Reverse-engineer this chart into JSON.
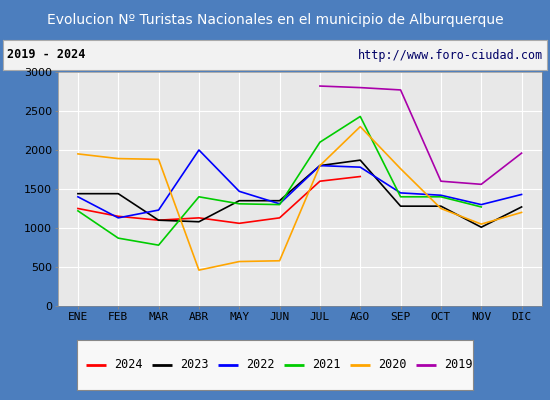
{
  "title": "Evolucion Nº Turistas Nacionales en el municipio de Alburquerque",
  "subtitle_left": "2019 - 2024",
  "subtitle_right": "http://www.foro-ciudad.com",
  "months": [
    "ENE",
    "FEB",
    "MAR",
    "ABR",
    "MAY",
    "JUN",
    "JUL",
    "AGO",
    "SEP",
    "OCT",
    "NOV",
    "DIC"
  ],
  "series": {
    "2024": [
      1250,
      1150,
      1100,
      1130,
      1060,
      1130,
      1600,
      1660,
      null,
      null,
      null,
      null
    ],
    "2023": [
      1440,
      1440,
      1100,
      1080,
      1350,
      1350,
      1800,
      1870,
      1280,
      1280,
      1010,
      1270
    ],
    "2022": [
      1400,
      1130,
      1230,
      2000,
      1470,
      1310,
      1800,
      1780,
      1450,
      1420,
      1300,
      1430
    ],
    "2021": [
      1220,
      870,
      780,
      1400,
      1310,
      1300,
      2100,
      2430,
      1400,
      1400,
      1270,
      null
    ],
    "2020": [
      1950,
      1890,
      1880,
      460,
      570,
      580,
      1800,
      2300,
      1760,
      1250,
      1050,
      1200
    ],
    "2019": [
      null,
      null,
      null,
      null,
      null,
      null,
      2820,
      2800,
      2770,
      1600,
      1560,
      1960
    ]
  },
  "colors": {
    "2024": "#ff0000",
    "2023": "#000000",
    "2022": "#0000ff",
    "2021": "#00cc00",
    "2020": "#ffa500",
    "2019": "#aa00aa"
  },
  "ylim": [
    0,
    3000
  ],
  "yticks": [
    0,
    500,
    1000,
    1500,
    2000,
    2500,
    3000
  ],
  "title_bg": "#4c7ebe",
  "title_color": "#ffffff",
  "plot_bg": "#e8e8e8",
  "grid_color": "#ffffff",
  "border_color": "#4c7ebe",
  "title_fontsize": 10,
  "axis_fontsize": 8,
  "legend_fontsize": 8.5,
  "subtitle_fontsize": 8.5
}
